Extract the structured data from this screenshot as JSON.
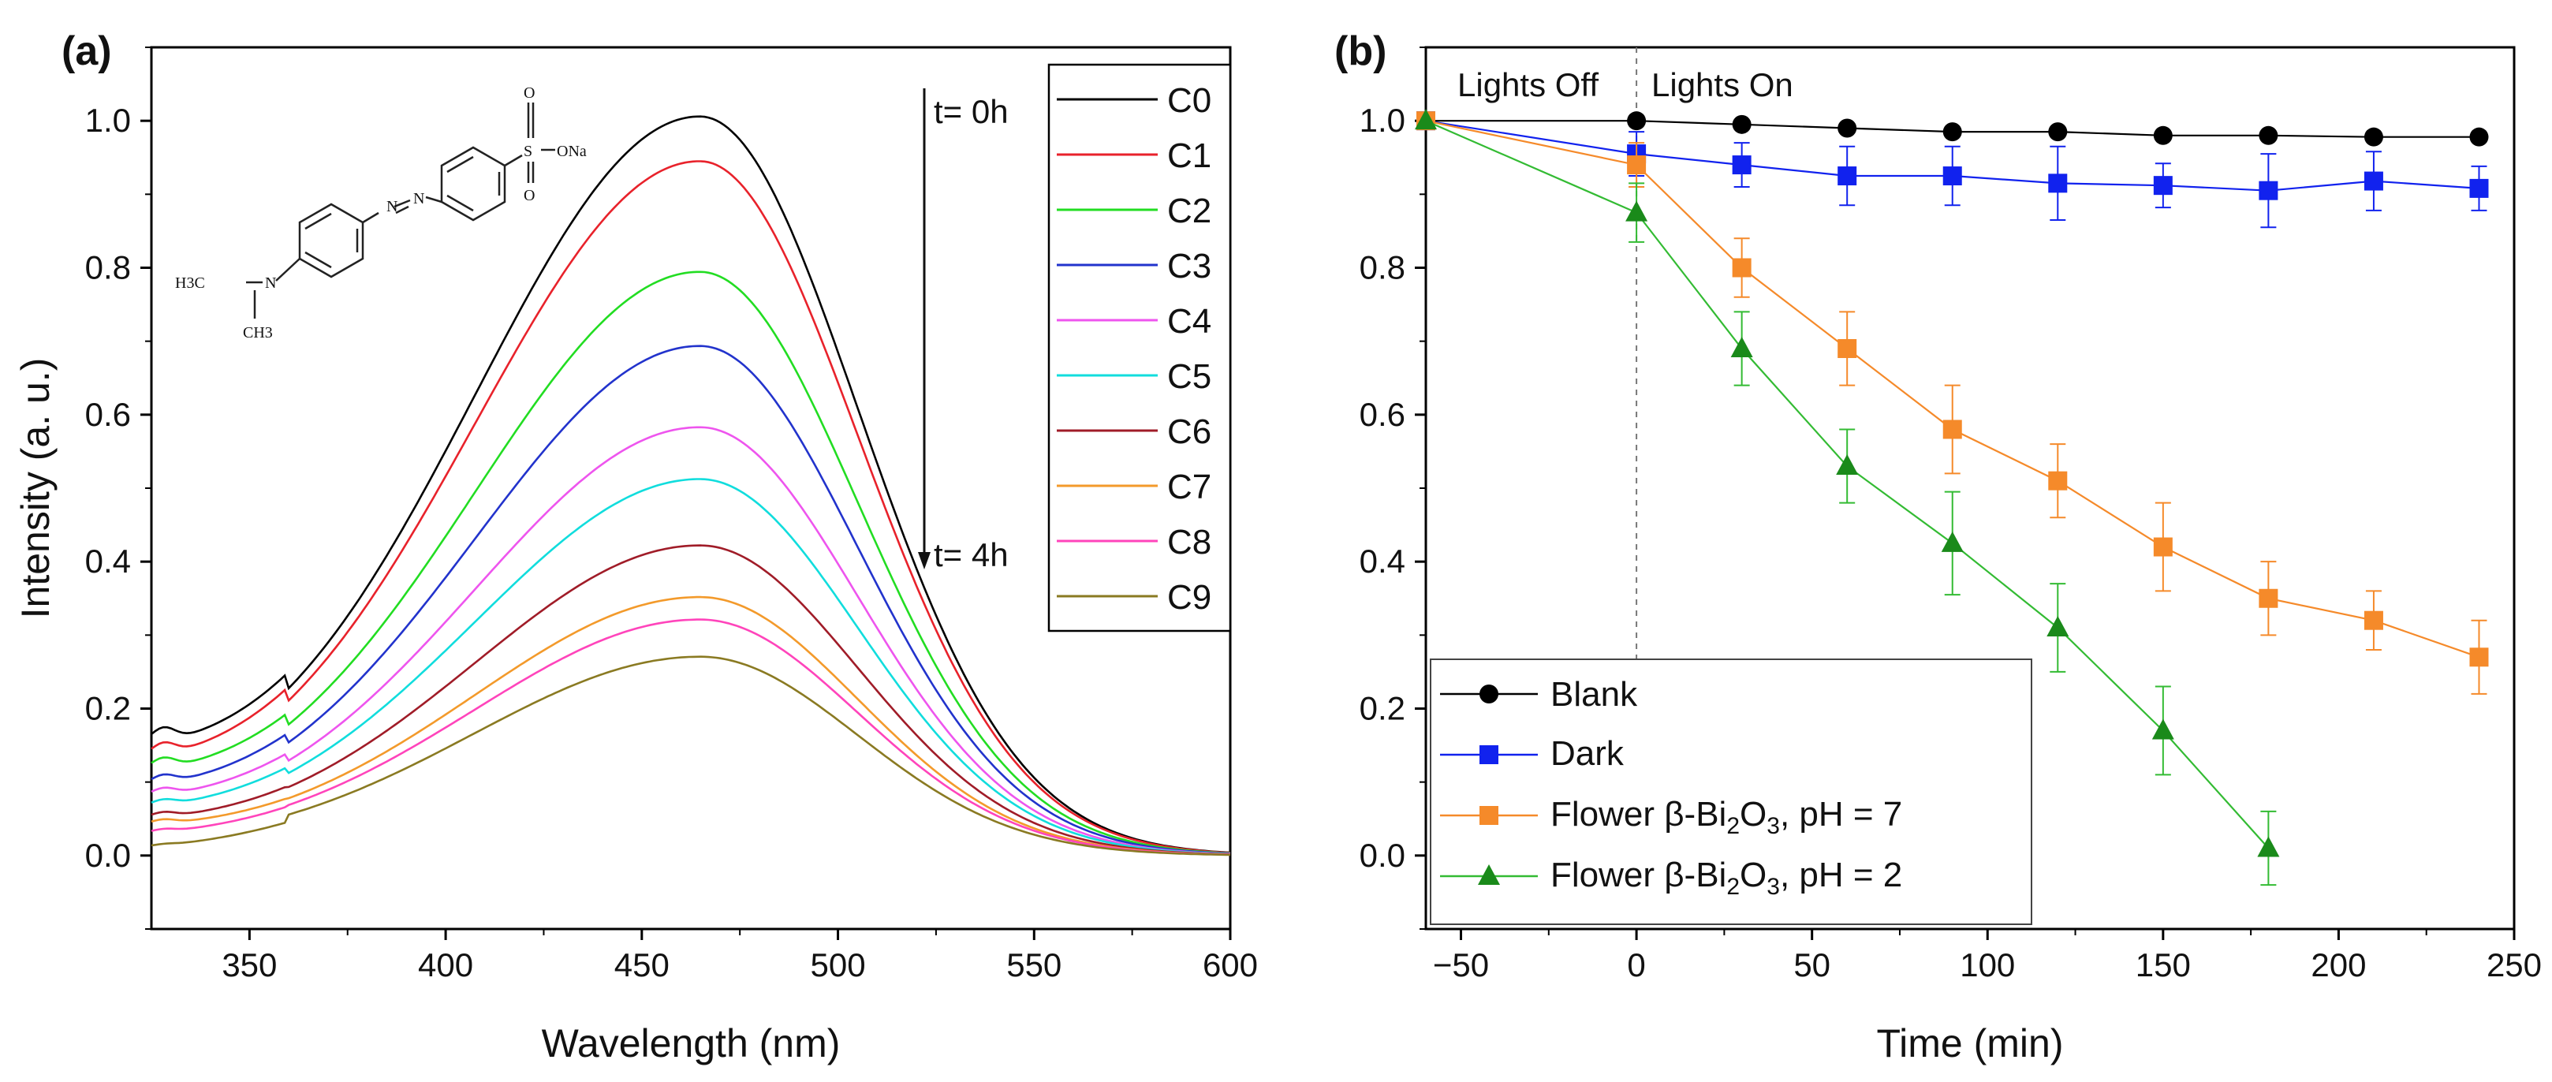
{
  "chart_data": [
    {
      "panel": "(a)",
      "type": "line",
      "xlabel": "Wavelength (nm)",
      "ylabel": "Intensity (a. u.)",
      "xlim": [
        325,
        600
      ],
      "ylim": [
        -0.1,
        1.1
      ],
      "xticks": [
        350,
        400,
        450,
        500,
        550,
        600
      ],
      "yticks": [
        0.0,
        0.2,
        0.4,
        0.6,
        0.8,
        1.0
      ],
      "grid": false,
      "legend_position": "top-right",
      "annotations": {
        "start": "t= 0h",
        "end": "t= 4h"
      },
      "structure_labels": {
        "sulfonate": "ONa",
        "s": "S",
        "o1": "O",
        "o2": "O",
        "n1": "N",
        "n2": "N",
        "amine": "N",
        "methyl1": "H3C",
        "methyl2": "CH3"
      },
      "peak_wavelength": 465,
      "series": [
        {
          "name": "C0",
          "color": "#000000",
          "peak": 1.0,
          "base": 0.1,
          "step": 0.0
        },
        {
          "name": "C1",
          "color": "#e8222b",
          "peak": 0.94,
          "base": 0.085,
          "step": 0.0
        },
        {
          "name": "C2",
          "color": "#22dd22",
          "peak": 0.79,
          "base": 0.075,
          "step": 0.0
        },
        {
          "name": "C3",
          "color": "#2233cc",
          "peak": 0.69,
          "base": 0.06,
          "step": 0.0
        },
        {
          "name": "C4",
          "color": "#ee55ee",
          "peak": 0.58,
          "base": 0.05,
          "step": 0.0
        },
        {
          "name": "C5",
          "color": "#11dddd",
          "peak": 0.51,
          "base": 0.04,
          "step": 0.0
        },
        {
          "name": "C6",
          "color": "#a01c28",
          "peak": 0.42,
          "base": 0.035,
          "step": 0.02
        },
        {
          "name": "C7",
          "color": "#f39a2b",
          "peak": 0.35,
          "base": 0.03,
          "step": 0.02
        },
        {
          "name": "C8",
          "color": "#ff44bb",
          "peak": 0.32,
          "base": 0.02,
          "step": 0.02
        },
        {
          "name": "C9",
          "color": "#8a7a22",
          "peak": 0.27,
          "base": 0.01,
          "step": 0.04
        }
      ]
    },
    {
      "panel": "(b)",
      "type": "line",
      "xlabel": "Time (min)",
      "ylabel": "",
      "xlim": [
        -60,
        250
      ],
      "ylim": [
        -0.1,
        1.1
      ],
      "xticks": [
        -50,
        0,
        50,
        100,
        150,
        200,
        250
      ],
      "yticks": [
        0.0,
        0.2,
        0.4,
        0.6,
        0.8,
        1.0
      ],
      "grid": false,
      "legend_position": "bottom-left",
      "annotations": {
        "left": "Lights Off",
        "right": "Lights On"
      },
      "vertical_line_x": 0,
      "series": [
        {
          "name": "Blank",
          "color": "#000000",
          "marker": "circle",
          "x": [
            -60,
            0,
            30,
            60,
            90,
            120,
            150,
            180,
            210,
            240
          ],
          "y": [
            1.0,
            1.0,
            0.995,
            0.99,
            0.985,
            0.985,
            0.98,
            0.98,
            0.978,
            0.978
          ],
          "err": [
            0,
            0,
            0,
            0,
            0,
            0,
            0,
            0,
            0,
            0
          ]
        },
        {
          "name": "Dark",
          "color": "#1122ee",
          "marker": "square",
          "x": [
            -60,
            0,
            30,
            60,
            90,
            120,
            150,
            180,
            210,
            240
          ],
          "y": [
            1.0,
            0.955,
            0.94,
            0.925,
            0.925,
            0.915,
            0.912,
            0.905,
            0.918,
            0.908
          ],
          "err": [
            0,
            0.03,
            0.03,
            0.04,
            0.04,
            0.05,
            0.03,
            0.05,
            0.04,
            0.03
          ]
        },
        {
          "name_main": "Flower β-Bi",
          "sub1": "2",
          "mid": "O",
          "sub2": "3",
          "name_tail": ", pH = 7",
          "color": "#f58a2a",
          "marker": "square",
          "x": [
            -60,
            0,
            30,
            60,
            90,
            120,
            150,
            180,
            210,
            240
          ],
          "y": [
            1.0,
            0.94,
            0.8,
            0.69,
            0.58,
            0.51,
            0.42,
            0.35,
            0.32,
            0.27
          ],
          "err": [
            0,
            0.03,
            0.04,
            0.05,
            0.06,
            0.05,
            0.06,
            0.05,
            0.04,
            0.05
          ]
        },
        {
          "name_main": "Flower β-Bi",
          "sub1": "2",
          "mid": "O",
          "sub2": "3",
          "name_tail": ", pH = 2",
          "color": "#1a8a1a",
          "line_color": "#33bb33",
          "marker": "triangle",
          "x": [
            -60,
            0,
            30,
            60,
            90,
            120,
            150,
            180
          ],
          "y": [
            1.0,
            0.875,
            0.69,
            0.53,
            0.425,
            0.31,
            0.17,
            0.01
          ],
          "err": [
            0,
            0.04,
            0.05,
            0.05,
            0.07,
            0.06,
            0.06,
            0.05
          ]
        }
      ]
    }
  ]
}
